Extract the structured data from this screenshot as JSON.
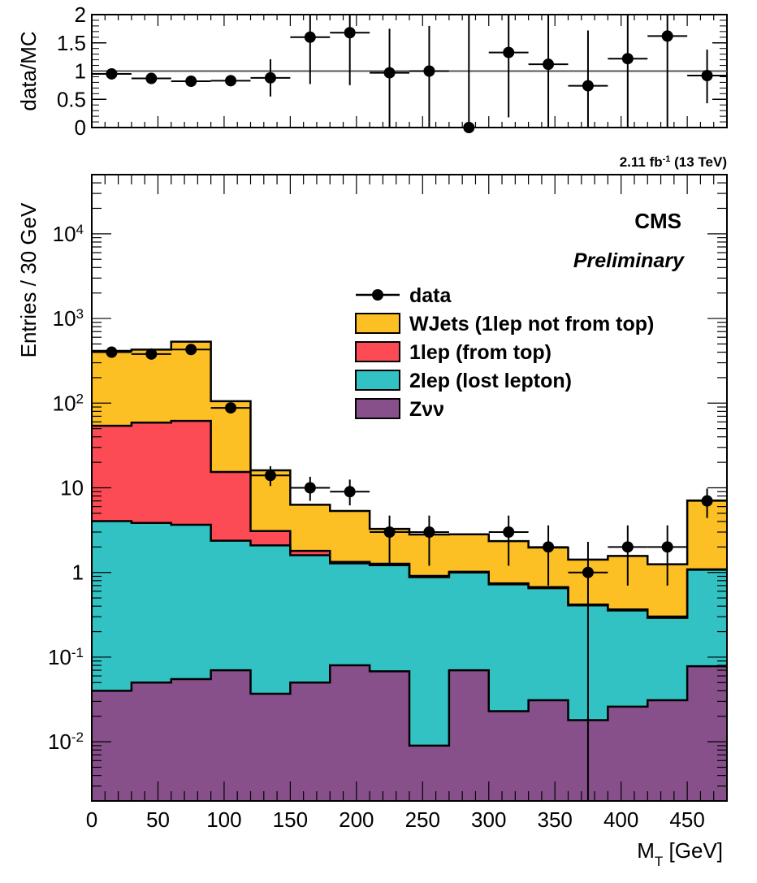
{
  "chart_data": [
    {
      "type": "scatter",
      "ylabel": "data/MC",
      "xlim": [
        0,
        480
      ],
      "ylim": [
        0,
        2
      ],
      "yticks": [
        "0",
        "0.5",
        "1",
        "1.5",
        "2"
      ],
      "reference_line": 1,
      "points": [
        {
          "x": 15,
          "y": 0.95,
          "ylo": 0.88,
          "yhi": 1.02
        },
        {
          "x": 45,
          "y": 0.87,
          "ylo": 0.81,
          "yhi": 0.93
        },
        {
          "x": 75,
          "y": 0.82,
          "ylo": 0.77,
          "yhi": 0.87
        },
        {
          "x": 105,
          "y": 0.83,
          "ylo": 0.73,
          "yhi": 0.93
        },
        {
          "x": 135,
          "y": 0.88,
          "ylo": 0.55,
          "yhi": 1.21
        },
        {
          "x": 165,
          "y": 1.6,
          "ylo": 0.77,
          "yhi": 2.2
        },
        {
          "x": 195,
          "y": 1.68,
          "ylo": 0.75,
          "yhi": 2.2
        },
        {
          "x": 225,
          "y": 0.97,
          "ylo": 0.0,
          "yhi": 1.75
        },
        {
          "x": 255,
          "y": 1.0,
          "ylo": 0.0,
          "yhi": 1.8
        },
        {
          "x": 285,
          "y": 0.0,
          "ylo": 0.0,
          "yhi": 2.2
        },
        {
          "x": 315,
          "y": 1.33,
          "ylo": 0.18,
          "yhi": 2.2
        },
        {
          "x": 345,
          "y": 1.12,
          "ylo": 0.0,
          "yhi": 2.2
        },
        {
          "x": 375,
          "y": 0.74,
          "ylo": 0.0,
          "yhi": 1.72
        },
        {
          "x": 405,
          "y": 1.22,
          "ylo": 0.0,
          "yhi": 2.2
        },
        {
          "x": 435,
          "y": 1.62,
          "ylo": 0.0,
          "yhi": 2.2
        },
        {
          "x": 465,
          "y": 0.92,
          "ylo": 0.43,
          "yhi": 1.38
        }
      ]
    },
    {
      "type": "area",
      "xlabel": "M",
      "xlabel_sub": "T",
      "xlabel_unit": " [GeV]",
      "ylabel": "Entries / 30 GeV",
      "xlim": [
        0,
        480
      ],
      "ylim": [
        0.002,
        50000
      ],
      "log_y": true,
      "x_ticks": [
        0,
        50,
        100,
        150,
        200,
        250,
        300,
        350,
        400,
        450
      ],
      "bin_edges": [
        0,
        30,
        60,
        90,
        120,
        150,
        180,
        210,
        240,
        270,
        300,
        330,
        360,
        390,
        420,
        450,
        480
      ],
      "lumi_text": "2.11 fb",
      "lumi_sup": "-1",
      "lumi_energy": " (13 TeV)",
      "cms_label": "CMS",
      "prelim_label": "Preliminary",
      "stacked_series": [
        {
          "name": "Zνν",
          "color": "#87508a",
          "values": [
            0.04,
            0.05,
            0.055,
            0.07,
            0.037,
            0.05,
            0.08,
            0.068,
            0.009,
            0.07,
            0.023,
            0.031,
            0.018,
            0.026,
            0.031,
            0.078
          ]
        },
        {
          "name": "2lep (lost lepton)",
          "color": "#32c2c4",
          "values": [
            4.0,
            3.8,
            3.6,
            2.3,
            2.05,
            1.55,
            1.2,
            1.15,
            0.87,
            0.93,
            0.7,
            0.62,
            0.39,
            0.33,
            0.26,
            1.0
          ]
        },
        {
          "name": "1lep (from top)",
          "color": "#fc4b55",
          "values": [
            50,
            55,
            58,
            13,
            1.0,
            0.2,
            0.05,
            0.05,
            0.03,
            0.02,
            0.02,
            0.02,
            0.01,
            0.01,
            0.01,
            0.01
          ]
        },
        {
          "name": "WJets (1lep not from top)",
          "color": "#fcbf24",
          "values": [
            360,
            370,
            470,
            90,
            13,
            4.5,
            4.0,
            2.0,
            1.9,
            1.8,
            1.6,
            1.3,
            1.0,
            1.2,
            0.95,
            6.0
          ]
        }
      ],
      "data": {
        "name": "data",
        "points": [
          {
            "x": 15,
            "y": 400,
            "ylo": 380,
            "yhi": 420
          },
          {
            "x": 45,
            "y": 380,
            "ylo": 360,
            "yhi": 400
          },
          {
            "x": 75,
            "y": 430,
            "ylo": 410,
            "yhi": 450
          },
          {
            "x": 105,
            "y": 88,
            "ylo": 79,
            "yhi": 98
          },
          {
            "x": 135,
            "y": 14,
            "ylo": 10.5,
            "yhi": 18
          },
          {
            "x": 165,
            "y": 10,
            "ylo": 7.0,
            "yhi": 13.5
          },
          {
            "x": 195,
            "y": 9,
            "ylo": 6.2,
            "yhi": 12.5
          },
          {
            "x": 225,
            "y": 3,
            "ylo": 1.2,
            "yhi": 4.7
          },
          {
            "x": 255,
            "y": 3,
            "ylo": 1.2,
            "yhi": 4.7
          },
          {
            "x": 315,
            "y": 3,
            "ylo": 1.2,
            "yhi": 4.7
          },
          {
            "x": 345,
            "y": 2,
            "ylo": 0.7,
            "yhi": 3.6
          },
          {
            "x": 375,
            "y": 1,
            "ylo": 0.001,
            "yhi": 2.3
          },
          {
            "x": 405,
            "y": 2,
            "ylo": 0.7,
            "yhi": 3.6
          },
          {
            "x": 435,
            "y": 2,
            "ylo": 0.7,
            "yhi": 3.6
          },
          {
            "x": 465,
            "y": 7,
            "ylo": 4.4,
            "yhi": 9.8
          }
        ]
      },
      "legend": [
        {
          "label": "data",
          "kind": "marker"
        },
        {
          "label": "WJets (1lep not from top)",
          "color": "#fcbf24"
        },
        {
          "label": "1lep (from top)",
          "color": "#fc4b55"
        },
        {
          "label": "2lep (lost lepton)",
          "color": "#32c2c4"
        },
        {
          "label": "Zνν",
          "color": "#87508a"
        }
      ],
      "legend_position": "upper-center"
    }
  ]
}
